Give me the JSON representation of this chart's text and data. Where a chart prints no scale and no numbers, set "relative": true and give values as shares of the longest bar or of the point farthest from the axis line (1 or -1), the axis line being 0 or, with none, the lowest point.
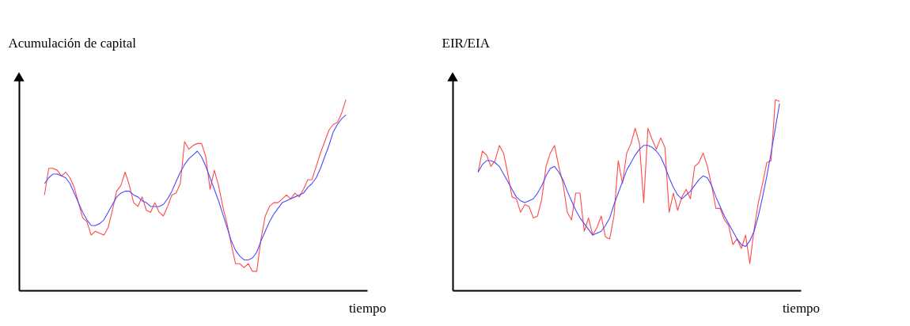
{
  "chart_data": [
    {
      "type": "line",
      "relative": true,
      "ylabel": "Acumulación de capital",
      "xlabel": "tiempo",
      "tick_labels": false,
      "grid": false,
      "legend": false,
      "line_style": "solid",
      "marker": "none",
      "categories": [
        null,
        null,
        null,
        null,
        null,
        null,
        null,
        null,
        null,
        null,
        null,
        null,
        null,
        null,
        null,
        null,
        null,
        null,
        null,
        null,
        null,
        null,
        null,
        null,
        null,
        null,
        null,
        null,
        null,
        null,
        null,
        null,
        null,
        null,
        null,
        null,
        null,
        null,
        null,
        null,
        null,
        null,
        null,
        null,
        null,
        null,
        null,
        null,
        null,
        null,
        null,
        null,
        null,
        null,
        null,
        null,
        null,
        null,
        null,
        null,
        null,
        null,
        null,
        null,
        null,
        null,
        null,
        null,
        null,
        null,
        null,
        null
      ],
      "series": [
        {
          "color": "#ff4a4a",
          "values": [
            0.5,
            0.64,
            0.64,
            0.63,
            0.6,
            0.62,
            0.59,
            0.54,
            0.46,
            0.38,
            0.36,
            0.29,
            0.31,
            0.3,
            0.29,
            0.33,
            0.42,
            0.52,
            0.55,
            0.62,
            0.55,
            0.46,
            0.44,
            0.49,
            0.42,
            0.41,
            0.46,
            0.41,
            0.39,
            0.44,
            0.5,
            0.51,
            0.56,
            0.78,
            0.74,
            0.76,
            0.77,
            0.77,
            0.7,
            0.53,
            0.63,
            0.55,
            0.44,
            0.35,
            0.24,
            0.14,
            0.14,
            0.12,
            0.14,
            0.1,
            0.1,
            0.27,
            0.39,
            0.44,
            0.46,
            0.46,
            0.48,
            0.5,
            0.48,
            0.51,
            0.49,
            0.53,
            0.58,
            0.58,
            0.65,
            0.72,
            0.78,
            0.84,
            0.87,
            0.88,
            0.93,
            1.0
          ]
        },
        {
          "color": "#4a4aff",
          "values": [
            0.56,
            0.59,
            0.61,
            0.61,
            0.6,
            0.59,
            0.56,
            0.51,
            0.46,
            0.41,
            0.37,
            0.34,
            0.34,
            0.35,
            0.37,
            0.41,
            0.45,
            0.49,
            0.51,
            0.52,
            0.52,
            0.5,
            0.49,
            0.47,
            0.46,
            0.44,
            0.44,
            0.44,
            0.45,
            0.48,
            0.52,
            0.57,
            0.62,
            0.66,
            0.69,
            0.71,
            0.73,
            0.7,
            0.65,
            0.59,
            0.53,
            0.47,
            0.4,
            0.33,
            0.26,
            0.21,
            0.18,
            0.16,
            0.16,
            0.17,
            0.2,
            0.26,
            0.31,
            0.36,
            0.4,
            0.43,
            0.46,
            0.47,
            0.48,
            0.49,
            0.5,
            0.51,
            0.54,
            0.56,
            0.59,
            0.64,
            0.7,
            0.76,
            0.83,
            0.87,
            0.9,
            0.92
          ]
        }
      ]
    },
    {
      "type": "line",
      "relative": true,
      "ylabel": "EIR/EIA",
      "xlabel": "tiempo",
      "tick_labels": false,
      "grid": false,
      "legend": false,
      "line_style": "solid",
      "marker": "none",
      "categories": [
        null,
        null,
        null,
        null,
        null,
        null,
        null,
        null,
        null,
        null,
        null,
        null,
        null,
        null,
        null,
        null,
        null,
        null,
        null,
        null,
        null,
        null,
        null,
        null,
        null,
        null,
        null,
        null,
        null,
        null,
        null,
        null,
        null,
        null,
        null,
        null,
        null,
        null,
        null,
        null,
        null,
        null,
        null,
        null,
        null,
        null,
        null,
        null,
        null,
        null,
        null,
        null,
        null,
        null,
        null,
        null,
        null,
        null,
        null,
        null,
        null,
        null,
        null,
        null,
        null,
        null,
        null,
        null,
        null,
        null,
        null,
        null
      ],
      "series": [
        {
          "color": "#ff4a4a",
          "values": [
            0.62,
            0.73,
            0.71,
            0.65,
            0.68,
            0.76,
            0.72,
            0.61,
            0.49,
            0.48,
            0.41,
            0.45,
            0.44,
            0.38,
            0.39,
            0.48,
            0.65,
            0.72,
            0.76,
            0.65,
            0.56,
            0.41,
            0.37,
            0.51,
            0.51,
            0.31,
            0.38,
            0.29,
            0.33,
            0.39,
            0.28,
            0.27,
            0.39,
            0.68,
            0.56,
            0.72,
            0.77,
            0.85,
            0.77,
            0.46,
            0.85,
            0.79,
            0.74,
            0.8,
            0.75,
            0.41,
            0.51,
            0.42,
            0.49,
            0.53,
            0.48,
            0.65,
            0.67,
            0.72,
            0.65,
            0.55,
            0.43,
            0.43,
            0.37,
            0.34,
            0.24,
            0.27,
            0.22,
            0.29,
            0.14,
            0.32,
            0.46,
            0.56,
            0.67,
            0.68,
            1.0,
            0.99
          ]
        },
        {
          "color": "#4a4aff",
          "values": [
            0.62,
            0.66,
            0.68,
            0.68,
            0.67,
            0.65,
            0.61,
            0.57,
            0.53,
            0.49,
            0.47,
            0.46,
            0.47,
            0.48,
            0.51,
            0.55,
            0.6,
            0.64,
            0.65,
            0.62,
            0.58,
            0.52,
            0.47,
            0.42,
            0.38,
            0.35,
            0.32,
            0.29,
            0.3,
            0.31,
            0.34,
            0.38,
            0.45,
            0.51,
            0.57,
            0.63,
            0.67,
            0.71,
            0.74,
            0.76,
            0.76,
            0.75,
            0.73,
            0.7,
            0.65,
            0.59,
            0.54,
            0.5,
            0.48,
            0.5,
            0.52,
            0.55,
            0.58,
            0.6,
            0.59,
            0.55,
            0.49,
            0.44,
            0.39,
            0.35,
            0.31,
            0.27,
            0.24,
            0.23,
            0.26,
            0.31,
            0.39,
            0.49,
            0.6,
            0.72,
            0.85,
            0.98
          ]
        }
      ]
    }
  ]
}
